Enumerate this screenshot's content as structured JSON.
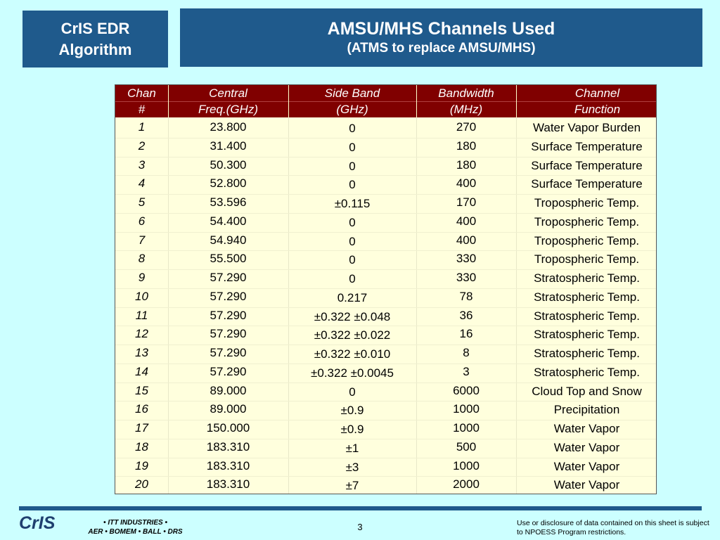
{
  "header": {
    "left_line1": "CrIS EDR",
    "left_line2": "Algorithm",
    "title": "AMSU/MHS Channels Used",
    "subtitle": "(ATMS to replace AMSU/MHS)"
  },
  "table": {
    "headers": [
      [
        "Chan",
        "#"
      ],
      [
        "Central",
        "Freq.(GHz)"
      ],
      [
        "Side Band",
        "(GHz)"
      ],
      [
        "Bandwidth",
        "(MHz)"
      ],
      [
        "Channel",
        "Function"
      ]
    ],
    "rows": [
      [
        "1",
        "23.800",
        "0",
        "270",
        "Water Vapor Burden"
      ],
      [
        "2",
        "31.400",
        "0",
        "180",
        "Surface Temperature"
      ],
      [
        "3",
        "50.300",
        "0",
        "180",
        "Surface Temperature"
      ],
      [
        "4",
        "52.800",
        "0",
        "400",
        "Surface Temperature"
      ],
      [
        "5",
        "53.596",
        "±0.115",
        "170",
        "Tropospheric Temp."
      ],
      [
        "6",
        "54.400",
        "0",
        "400",
        "Tropospheric Temp."
      ],
      [
        "7",
        "54.940",
        "0",
        "400",
        "Tropospheric Temp."
      ],
      [
        "8",
        "55.500",
        "0",
        "330",
        "Tropospheric Temp."
      ],
      [
        "9",
        "57.290",
        "0",
        "330",
        "Stratospheric Temp."
      ],
      [
        "10",
        "57.290",
        "0.217",
        "78",
        "Stratospheric Temp."
      ],
      [
        "11",
        "57.290",
        "±0.322 ±0.048",
        "36",
        "Stratospheric Temp."
      ],
      [
        "12",
        "57.290",
        "±0.322 ±0.022",
        "16",
        "Stratospheric Temp."
      ],
      [
        "13",
        "57.290",
        "±0.322 ±0.010",
        "8",
        "Stratospheric Temp."
      ],
      [
        "14",
        "57.290",
        "±0.322 ±0.0045",
        "3",
        "Stratospheric Temp."
      ],
      [
        "15",
        "89.000",
        "0",
        "6000",
        "Cloud Top and Snow"
      ],
      [
        "16",
        "89.000",
        "±0.9",
        "1000",
        "Precipitation"
      ],
      [
        "17",
        "150.000",
        "±0.9",
        "1000",
        "Water Vapor"
      ],
      [
        "18",
        "183.310",
        "±1",
        "500",
        "Water Vapor"
      ],
      [
        "19",
        "183.310",
        "±3",
        "1000",
        "Water Vapor"
      ],
      [
        "20",
        "183.310",
        "±7",
        "2000",
        "Water Vapor"
      ]
    ]
  },
  "footer": {
    "logo": "CrIS",
    "partners_line1": "• ITT INDUSTRIES •",
    "partners_line2": "AER • BOMEM • BALL • DRS",
    "page_number": "3",
    "disclaimer": "Use or disclosure of data contained on this sheet is subject to NPOESS Program restrictions."
  },
  "colors": {
    "background": "#ccffff",
    "title_box": "#1f5a8c",
    "table_header": "#800000",
    "table_body": "#ffffdd"
  }
}
